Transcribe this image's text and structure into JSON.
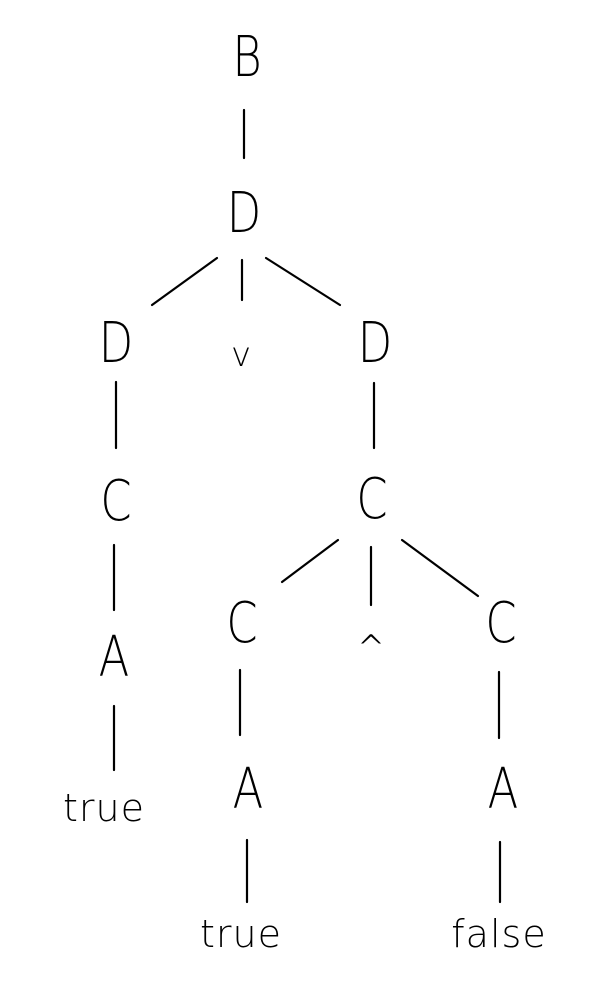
{
  "tree": {
    "root": "B",
    "n_d1": "D",
    "n_d_left": "D",
    "n_or": "v",
    "n_d_right": "D",
    "n_c_left": "C",
    "n_a_left": "A",
    "leaf_left": "true",
    "n_c_mid": "C",
    "n_c_a": "C",
    "n_and": "^",
    "n_c_b": "C",
    "n_a_mid": "A",
    "leaf_mid": "true",
    "n_a_right": "A",
    "leaf_right": "false"
  },
  "colors": {
    "ink": "#000000",
    "background": "#ffffff"
  }
}
